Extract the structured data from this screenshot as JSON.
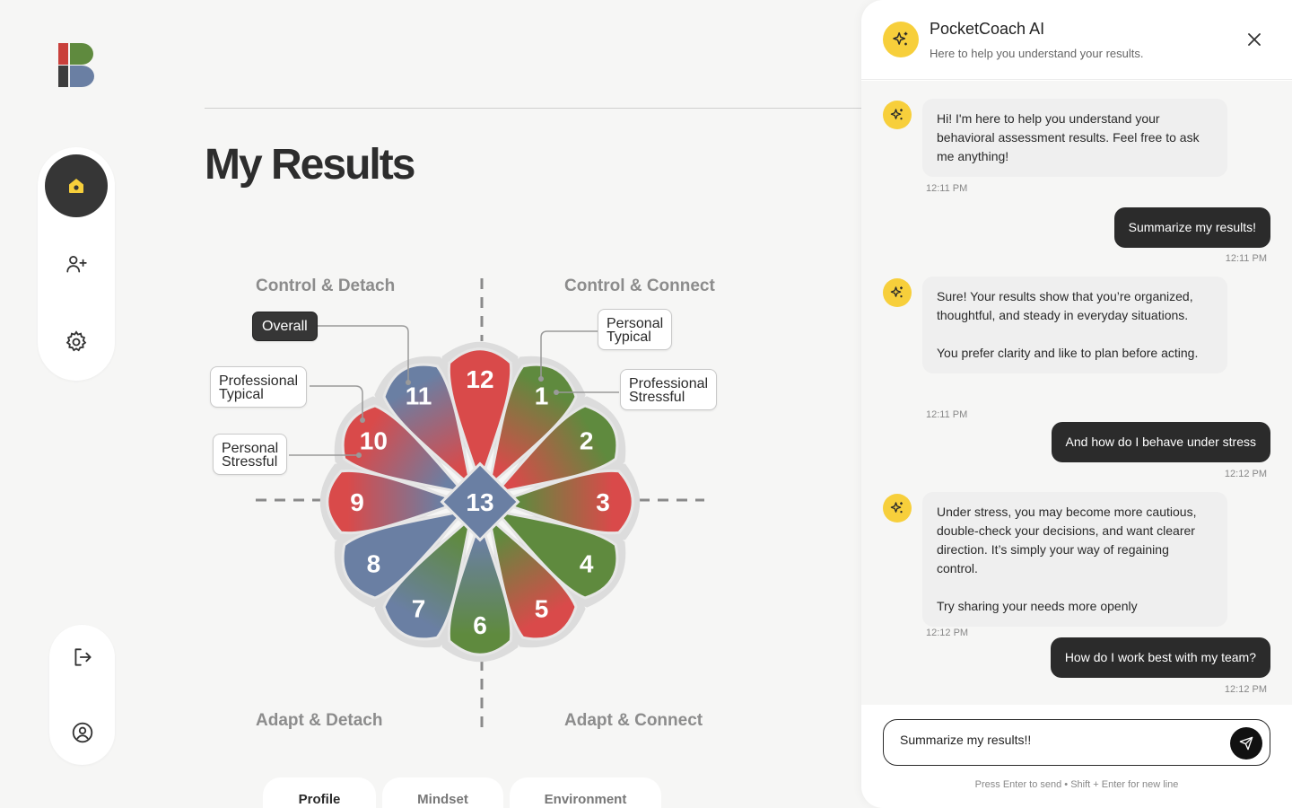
{
  "page": {
    "title": "My Results"
  },
  "nav": {
    "items": [
      {
        "name": "home",
        "icon": "home-icon",
        "active": true
      },
      {
        "name": "add-user",
        "icon": "user-plus-icon",
        "active": false
      },
      {
        "name": "settings",
        "icon": "gear-icon",
        "active": false
      }
    ],
    "bottom": [
      {
        "name": "logout",
        "icon": "logout-icon"
      },
      {
        "name": "profile",
        "icon": "user-circle-icon"
      }
    ]
  },
  "quadrants": {
    "top_left": "Control & Detach",
    "top_right": "Control & Connect",
    "bottom_left": "Adapt & Detach",
    "bottom_right": "Adapt & Connect"
  },
  "wheel": {
    "center": "13",
    "petals": [
      "1",
      "2",
      "3",
      "4",
      "5",
      "6",
      "7",
      "8",
      "9",
      "10",
      "11",
      "12"
    ],
    "colors": {
      "red": "#d94a4a",
      "green": "#5f8a3e",
      "blue": "#6a7fa3"
    }
  },
  "tags": {
    "overall": "Overall",
    "personal_typical": "Personal\nTypical",
    "professional_stressful": "Professional\nStressful",
    "professional_typical": "Professional\nTypical",
    "personal_stressful": "Personal\nStressful"
  },
  "tabs": [
    {
      "label": "Profile",
      "active": true
    },
    {
      "label": "Mindset",
      "active": false
    },
    {
      "label": "Environment",
      "active": false
    }
  ],
  "chat": {
    "title": "PocketCoach AI",
    "subtitle": "Here to help you understand your results.",
    "messages": [
      {
        "from": "bot",
        "text": "Hi! I'm here to help you understand your behavioral assessment results. Feel free to ask me anything!",
        "time": "12:11 PM"
      },
      {
        "from": "user",
        "text": "Summarize my results!",
        "time": "12:11 PM"
      },
      {
        "from": "bot",
        "text": "Sure! Your results show that you’re organized, thoughtful, and steady in everyday situations.\n\nYou prefer clarity and like to plan before acting.",
        "time": "12:11 PM"
      },
      {
        "from": "user",
        "text": "And how do I behave under stress",
        "time": "12:12 PM"
      },
      {
        "from": "bot",
        "text": "Under stress, you may become more cautious, double-check your decisions, and want clearer direction. It’s simply your way of regaining control.\n\nTry sharing your needs more openly",
        "time": "12:12 PM"
      },
      {
        "from": "user",
        "text": "How do I work best with my team?",
        "time": "12:12 PM"
      }
    ],
    "input_value": "Summarize my results!!",
    "hint": "Press Enter to send • Shift + Enter for new line"
  }
}
